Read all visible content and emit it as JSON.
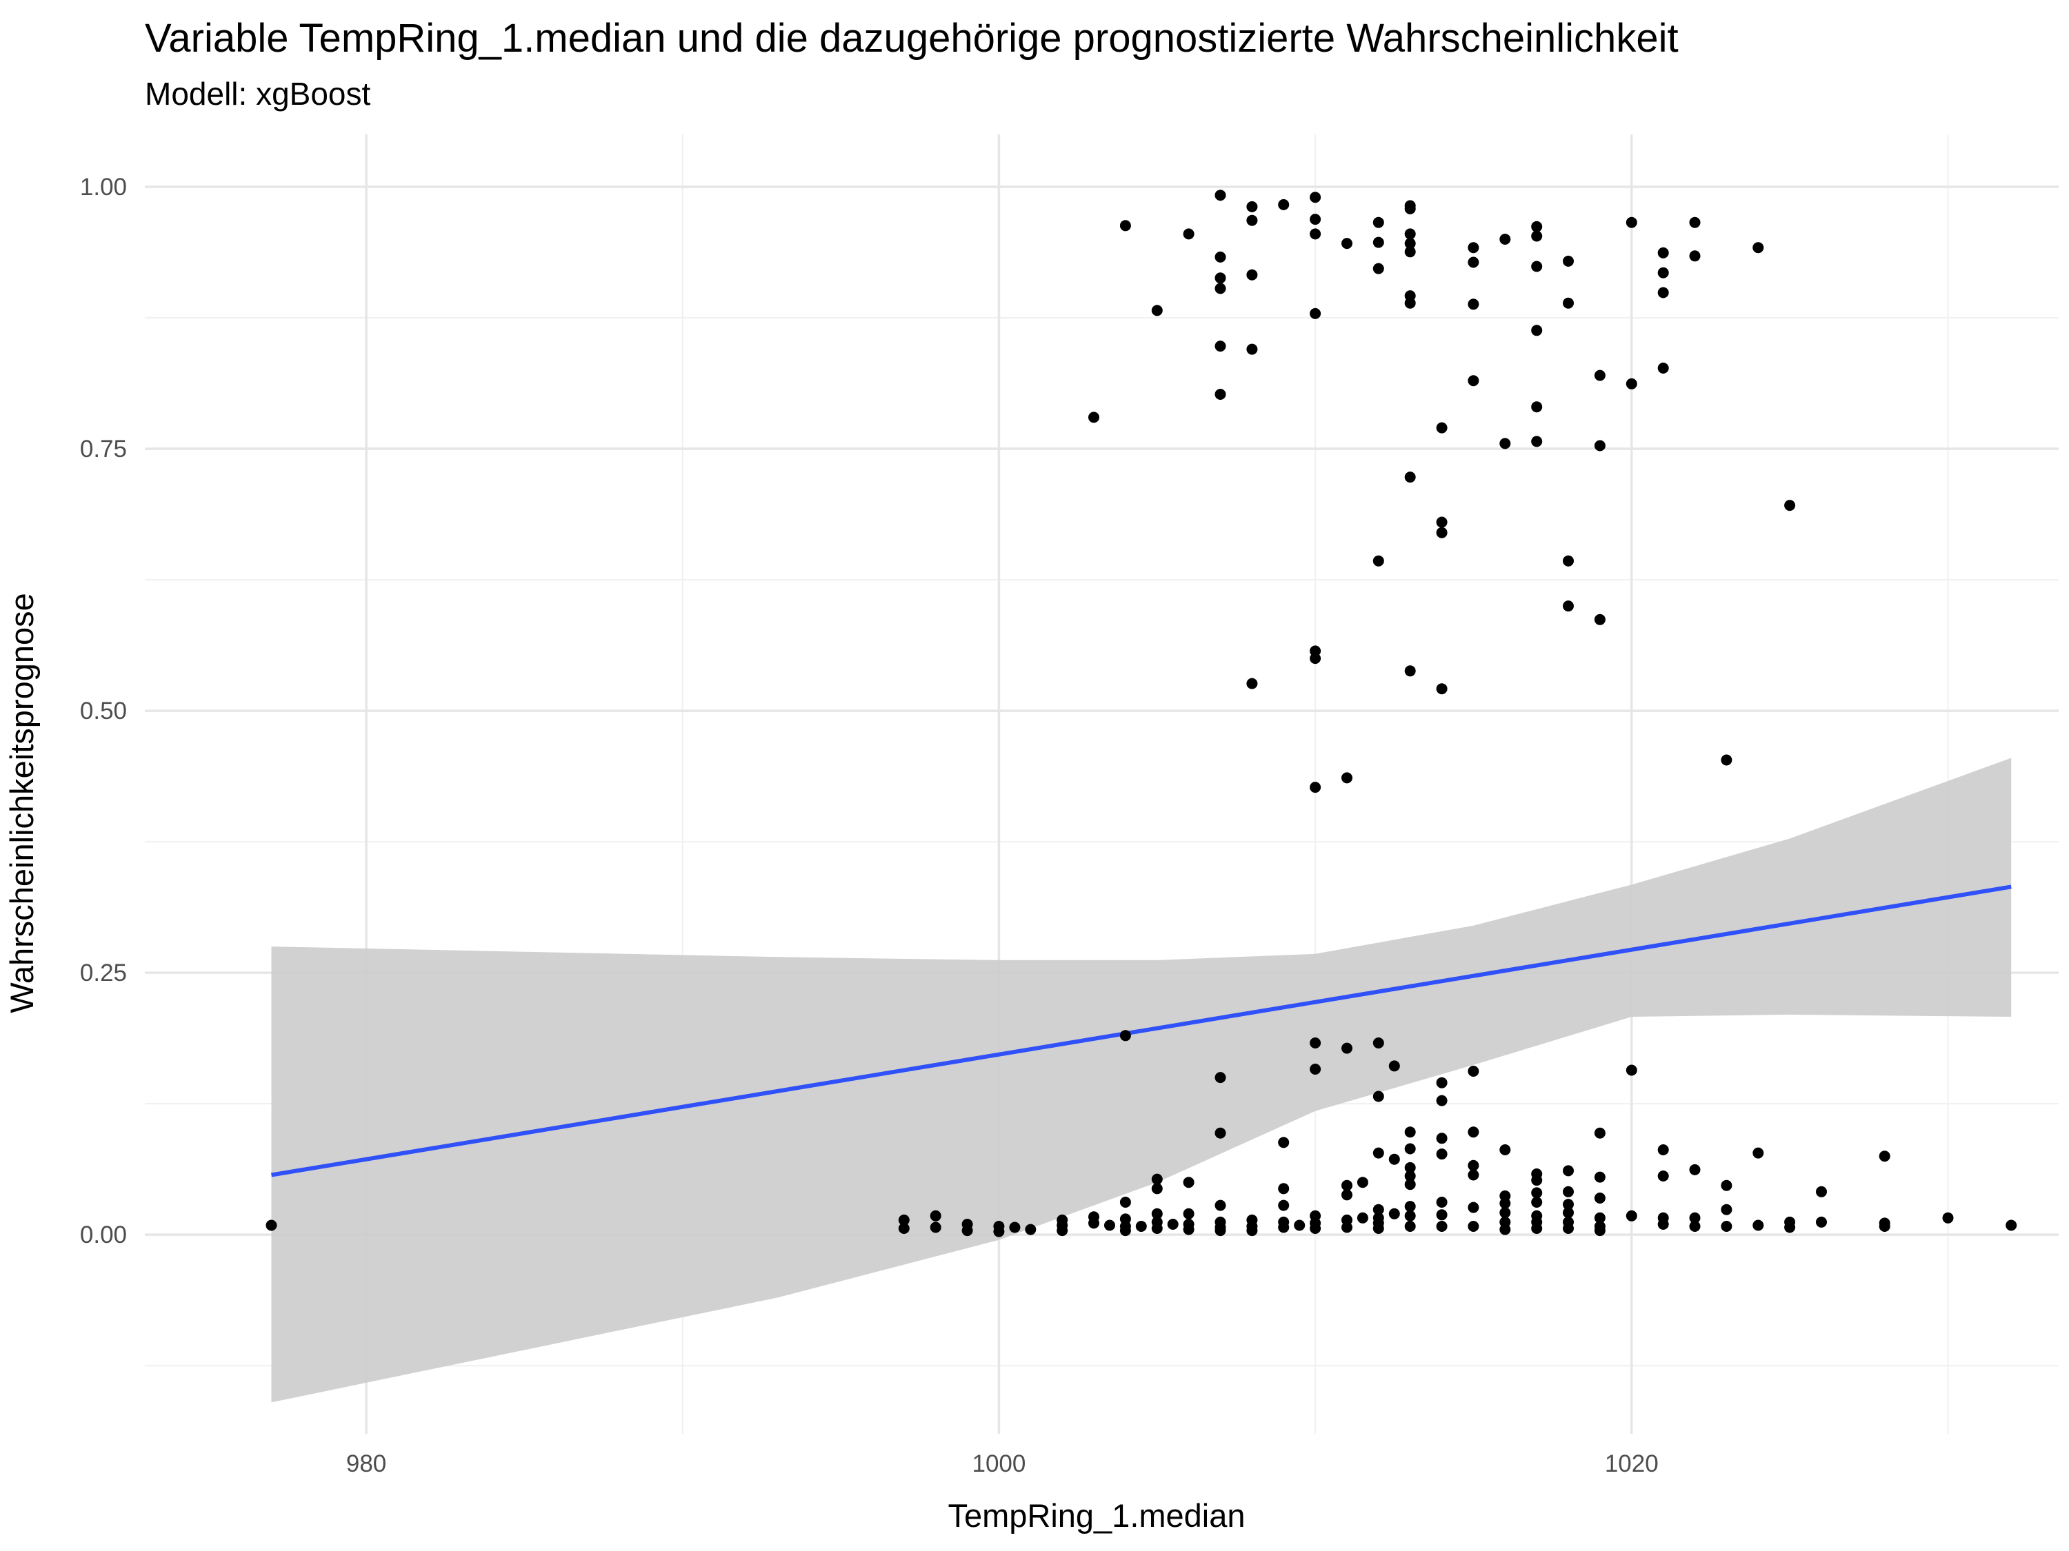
{
  "chart_data": {
    "type": "scatter",
    "title": "Variable TempRing_1.median und die dazugehörige prognostizierte Wahrscheinlichkeit",
    "subtitle": "Modell: xgBoost",
    "xlabel": "TempRing_1.median",
    "ylabel": "Wahrscheinlichkeitsprognose",
    "xlim": [
      973,
      1033.5
    ],
    "ylim": [
      -0.19,
      1.05
    ],
    "x_ticks": [
      980,
      1000,
      1020
    ],
    "x_tick_labels": [
      "980",
      "1000",
      "1020"
    ],
    "y_ticks": [
      0.0,
      0.25,
      0.5,
      0.75,
      1.0
    ],
    "y_tick_labels": [
      "0.00",
      "0.25",
      "0.50",
      "0.75",
      "1.00"
    ],
    "grid": true,
    "point_color": "#000000",
    "line_color": "#3050f8",
    "ribbon_color": "#cccccc",
    "trend_line": {
      "x": [
        977,
        1032
      ],
      "y": [
        0.057,
        0.332
      ]
    },
    "confidence_band": {
      "x": [
        977,
        985,
        993,
        1000,
        1005,
        1010,
        1015,
        1020,
        1025,
        1032
      ],
      "upper": [
        0.275,
        0.27,
        0.265,
        0.262,
        0.262,
        0.268,
        0.295,
        0.334,
        0.378,
        0.455
      ],
      "lower": [
        -0.16,
        -0.11,
        -0.06,
        -0.005,
        0.05,
        0.118,
        0.162,
        0.208,
        0.21,
        0.208
      ]
    },
    "points": [
      [
        977,
        0.009
      ],
      [
        997,
        0.014
      ],
      [
        997,
        0.006
      ],
      [
        998,
        0.018
      ],
      [
        998,
        0.007
      ],
      [
        999,
        0.01
      ],
      [
        999,
        0.004
      ],
      [
        1000,
        0.008
      ],
      [
        1000,
        0.003
      ],
      [
        1000.5,
        0.007
      ],
      [
        1001,
        0.005
      ],
      [
        1002,
        0.014
      ],
      [
        1002,
        0.009
      ],
      [
        1002,
        0.004
      ],
      [
        1003,
        0.017
      ],
      [
        1003,
        0.011
      ],
      [
        1003,
        0.78
      ],
      [
        1003.5,
        0.009
      ],
      [
        1004,
        0.963
      ],
      [
        1004,
        0.19
      ],
      [
        1004,
        0.031
      ],
      [
        1004,
        0.015
      ],
      [
        1004,
        0.008
      ],
      [
        1004,
        0.004
      ],
      [
        1004.5,
        0.008
      ],
      [
        1005,
        0.882
      ],
      [
        1005,
        0.053
      ],
      [
        1005,
        0.044
      ],
      [
        1005,
        0.02
      ],
      [
        1005,
        0.012
      ],
      [
        1005,
        0.006
      ],
      [
        1005.5,
        0.01
      ],
      [
        1006,
        0.955
      ],
      [
        1006,
        0.05
      ],
      [
        1006,
        0.02
      ],
      [
        1006,
        0.01
      ],
      [
        1006,
        0.005
      ],
      [
        1007,
        0.992
      ],
      [
        1007,
        0.933
      ],
      [
        1007,
        0.913
      ],
      [
        1007,
        0.903
      ],
      [
        1007,
        0.848
      ],
      [
        1007,
        0.802
      ],
      [
        1007,
        0.15
      ],
      [
        1007,
        0.097
      ],
      [
        1007,
        0.028
      ],
      [
        1007,
        0.012
      ],
      [
        1007,
        0.007
      ],
      [
        1007,
        0.004
      ],
      [
        1008,
        0.981
      ],
      [
        1008,
        0.968
      ],
      [
        1008,
        0.916
      ],
      [
        1008,
        0.845
      ],
      [
        1008,
        0.526
      ],
      [
        1008,
        0.014
      ],
      [
        1008,
        0.008
      ],
      [
        1008,
        0.004
      ],
      [
        1009,
        0.983
      ],
      [
        1009,
        0.088
      ],
      [
        1009,
        0.044
      ],
      [
        1009,
        0.028
      ],
      [
        1009,
        0.012
      ],
      [
        1009,
        0.007
      ],
      [
        1009.5,
        0.009
      ],
      [
        1010,
        0.99
      ],
      [
        1010,
        0.969
      ],
      [
        1010,
        0.955
      ],
      [
        1010,
        0.879
      ],
      [
        1010,
        0.557
      ],
      [
        1010,
        0.55
      ],
      [
        1010,
        0.427
      ],
      [
        1010,
        0.183
      ],
      [
        1010,
        0.158
      ],
      [
        1010,
        0.018
      ],
      [
        1010,
        0.011
      ],
      [
        1010,
        0.006
      ],
      [
        1011,
        0.946
      ],
      [
        1011,
        0.436
      ],
      [
        1011,
        0.178
      ],
      [
        1011,
        0.047
      ],
      [
        1011,
        0.038
      ],
      [
        1011,
        0.014
      ],
      [
        1011,
        0.007
      ],
      [
        1011.5,
        0.05
      ],
      [
        1011.5,
        0.016
      ],
      [
        1012,
        0.966
      ],
      [
        1012,
        0.947
      ],
      [
        1012,
        0.922
      ],
      [
        1012,
        0.643
      ],
      [
        1012,
        0.183
      ],
      [
        1012,
        0.132
      ],
      [
        1012,
        0.078
      ],
      [
        1012,
        0.024
      ],
      [
        1012,
        0.016
      ],
      [
        1012,
        0.011
      ],
      [
        1012,
        0.006
      ],
      [
        1012.5,
        0.161
      ],
      [
        1012.5,
        0.072
      ],
      [
        1012.5,
        0.02
      ],
      [
        1013,
        0.982
      ],
      [
        1013,
        0.979
      ],
      [
        1013,
        0.955
      ],
      [
        1013,
        0.946
      ],
      [
        1013,
        0.938
      ],
      [
        1013,
        0.896
      ],
      [
        1013,
        0.889
      ],
      [
        1013,
        0.723
      ],
      [
        1013,
        0.538
      ],
      [
        1013,
        0.098
      ],
      [
        1013,
        0.082
      ],
      [
        1013,
        0.064
      ],
      [
        1013,
        0.056
      ],
      [
        1013,
        0.048
      ],
      [
        1013,
        0.027
      ],
      [
        1013,
        0.018
      ],
      [
        1013,
        0.008
      ],
      [
        1014,
        0.68
      ],
      [
        1014,
        0.67
      ],
      [
        1014,
        0.521
      ],
      [
        1014,
        0.77
      ],
      [
        1014,
        0.145
      ],
      [
        1014,
        0.128
      ],
      [
        1014,
        0.092
      ],
      [
        1014,
        0.077
      ],
      [
        1014,
        0.031
      ],
      [
        1014,
        0.019
      ],
      [
        1014,
        0.008
      ],
      [
        1015,
        0.942
      ],
      [
        1015,
        0.928
      ],
      [
        1015,
        0.888
      ],
      [
        1015,
        0.815
      ],
      [
        1015,
        0.156
      ],
      [
        1015,
        0.098
      ],
      [
        1015,
        0.066
      ],
      [
        1015,
        0.057
      ],
      [
        1015,
        0.026
      ],
      [
        1015,
        0.008
      ],
      [
        1016,
        0.95
      ],
      [
        1016,
        0.755
      ],
      [
        1016,
        0.081
      ],
      [
        1016,
        0.037
      ],
      [
        1016,
        0.03
      ],
      [
        1016,
        0.021
      ],
      [
        1016,
        0.012
      ],
      [
        1016,
        0.005
      ],
      [
        1017,
        0.962
      ],
      [
        1017,
        0.953
      ],
      [
        1017,
        0.924
      ],
      [
        1017,
        0.863
      ],
      [
        1017,
        0.79
      ],
      [
        1017,
        0.757
      ],
      [
        1017,
        0.058
      ],
      [
        1017,
        0.052
      ],
      [
        1017,
        0.04
      ],
      [
        1017,
        0.031
      ],
      [
        1017,
        0.018
      ],
      [
        1017,
        0.012
      ],
      [
        1017,
        0.006
      ],
      [
        1018,
        0.929
      ],
      [
        1018,
        0.889
      ],
      [
        1018,
        0.643
      ],
      [
        1018,
        0.6
      ],
      [
        1018,
        0.061
      ],
      [
        1018,
        0.041
      ],
      [
        1018,
        0.029
      ],
      [
        1018,
        0.021
      ],
      [
        1018,
        0.012
      ],
      [
        1018,
        0.006
      ],
      [
        1019,
        0.82
      ],
      [
        1019,
        0.753
      ],
      [
        1019,
        0.587
      ],
      [
        1019,
        0.097
      ],
      [
        1019,
        0.055
      ],
      [
        1019,
        0.035
      ],
      [
        1019,
        0.016
      ],
      [
        1019,
        0.008
      ],
      [
        1019,
        0.004
      ],
      [
        1020,
        0.966
      ],
      [
        1020,
        0.812
      ],
      [
        1020,
        0.157
      ],
      [
        1020,
        0.018
      ],
      [
        1021,
        0.937
      ],
      [
        1021,
        0.918
      ],
      [
        1021,
        0.899
      ],
      [
        1021,
        0.827
      ],
      [
        1021,
        0.081
      ],
      [
        1021,
        0.056
      ],
      [
        1021,
        0.016
      ],
      [
        1021,
        0.01
      ],
      [
        1022,
        0.966
      ],
      [
        1022,
        0.934
      ],
      [
        1022,
        0.062
      ],
      [
        1022,
        0.016
      ],
      [
        1022,
        0.008
      ],
      [
        1023,
        0.453
      ],
      [
        1023,
        0.047
      ],
      [
        1023,
        0.024
      ],
      [
        1023,
        0.008
      ],
      [
        1024,
        0.942
      ],
      [
        1024,
        0.078
      ],
      [
        1024,
        0.009
      ],
      [
        1025,
        0.696
      ],
      [
        1025,
        0.012
      ],
      [
        1025,
        0.007
      ],
      [
        1026,
        0.041
      ],
      [
        1026,
        0.012
      ],
      [
        1028,
        0.075
      ],
      [
        1028,
        0.011
      ],
      [
        1028,
        0.008
      ],
      [
        1030,
        0.016
      ],
      [
        1032,
        0.009
      ]
    ]
  }
}
